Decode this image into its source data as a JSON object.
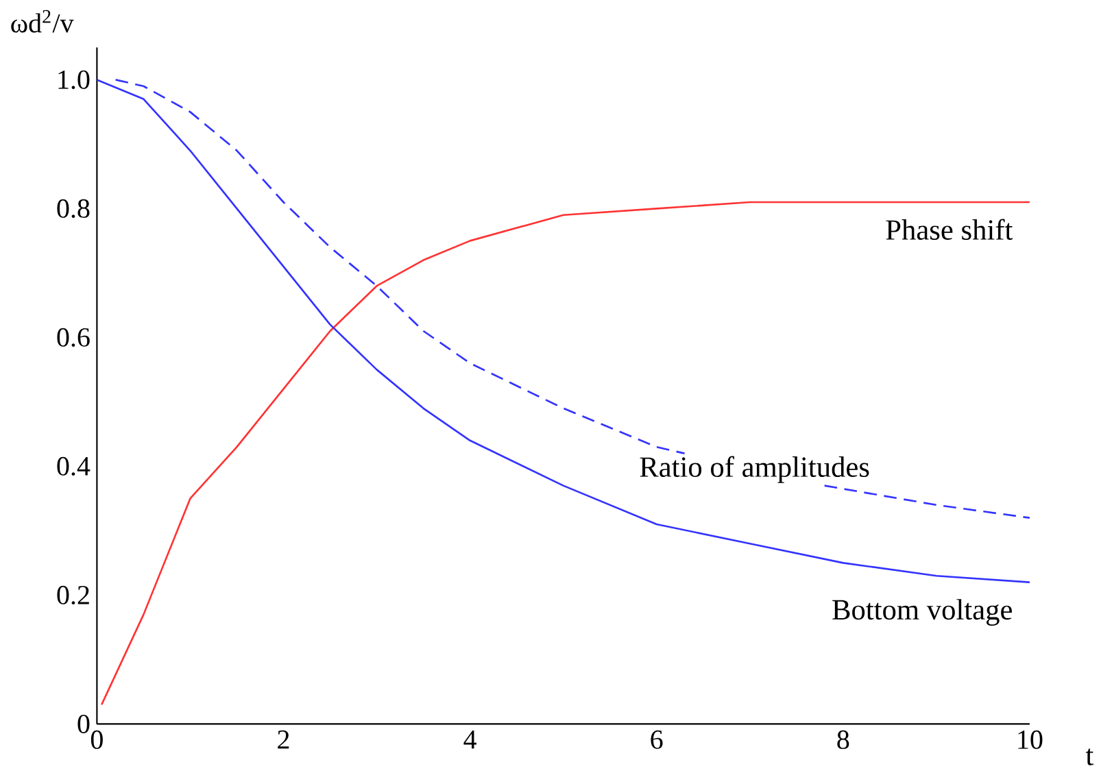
{
  "chart_data": {
    "type": "line",
    "xlabel": "t",
    "ylabel": "ωd$^{2}$/v",
    "xlim": [
      0,
      10
    ],
    "ylim": [
      0,
      1.05
    ],
    "xticks": [
      0,
      2,
      4,
      6,
      8,
      10
    ],
    "yticks": [
      0,
      0.2,
      0.4,
      0.6,
      0.8,
      {
        "value": 1,
        "label": "1.0"
      }
    ],
    "grid": false,
    "marker": "none",
    "series": [
      {
        "name": "Phase shift",
        "color": "#ff3333",
        "line_style": "solid",
        "x": [
          0.05,
          0.5,
          1,
          1.5,
          2,
          2.5,
          3,
          3.5,
          4,
          5,
          6,
          7,
          8,
          10
        ],
        "values": [
          0.03,
          0.17,
          0.35,
          0.43,
          0.52,
          0.61,
          0.68,
          0.72,
          0.75,
          0.79,
          0.8,
          0.81,
          0.81,
          0.81
        ]
      },
      {
        "name": "Ratio of amplitudes",
        "color": "#3333ff",
        "line_style": "dashed",
        "x": [
          0.2,
          0.5,
          1,
          1.5,
          2,
          2.5,
          3,
          3.5,
          4,
          5,
          6,
          6.3,
          7,
          7.8,
          9,
          10
        ],
        "values": [
          1.0,
          0.99,
          0.95,
          0.89,
          0.81,
          0.74,
          0.68,
          0.61,
          0.56,
          0.49,
          0.43,
          0.42,
          null,
          0.37,
          0.34,
          0.32
        ]
      },
      {
        "name": "Bottom voltage",
        "color": "#3333ff",
        "line_style": "solid",
        "x": [
          0,
          0.5,
          1,
          1.5,
          2,
          2.5,
          3,
          3.5,
          4,
          5,
          6,
          7,
          8,
          9,
          10
        ],
        "values": [
          1.0,
          0.97,
          0.89,
          0.8,
          0.71,
          0.62,
          0.55,
          0.49,
          0.44,
          0.37,
          0.31,
          0.28,
          0.25,
          0.23,
          0.22
        ]
      }
    ]
  }
}
